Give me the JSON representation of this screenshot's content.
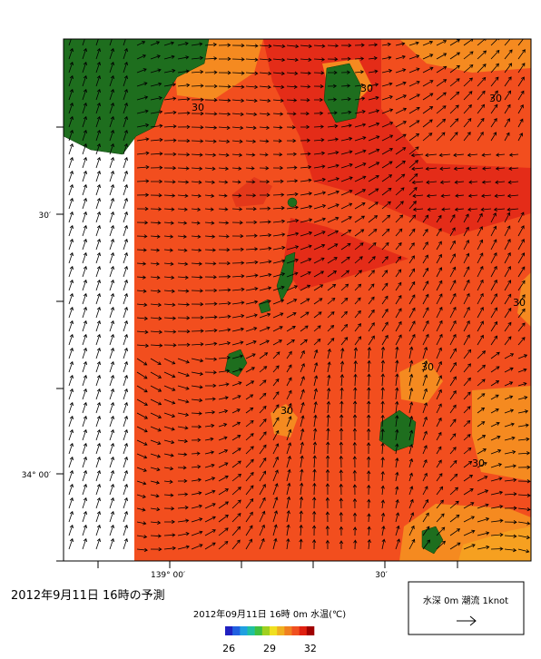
{
  "map": {
    "lat_labels": [
      "30′",
      "34° 00′"
    ],
    "lon_labels": [
      "139° 00′",
      "30′"
    ],
    "contour_labels": [
      "30",
      "30",
      "30",
      "30",
      "30",
      "30",
      "30"
    ],
    "title": "2012年9月11日  16時の予測",
    "colorbar": {
      "caption": "2012年09月11日 16時 0m 水温(℃)",
      "range": [
        26,
        32
      ],
      "ticks": [
        26,
        29,
        32
      ],
      "colors": [
        "#2020c0",
        "#2060e0",
        "#20a0e0",
        "#20c0a0",
        "#40c040",
        "#a0d020",
        "#f0e020",
        "#f0b020",
        "#f08020",
        "#f05020",
        "#e02010",
        "#a00000"
      ]
    },
    "legend": "水深 0m  潮流  1knot"
  }
}
